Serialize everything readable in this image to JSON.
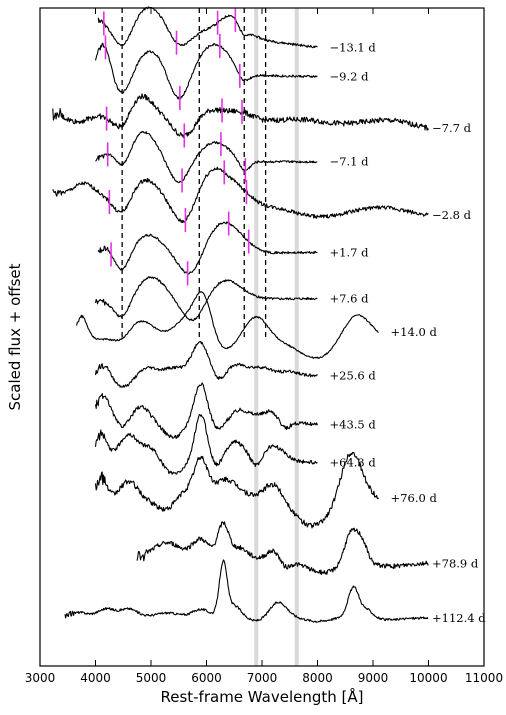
{
  "chart_data": {
    "type": "line",
    "title": "",
    "xlabel": "Rest-frame Wavelength [Å]",
    "ylabel": "Scaled flux + offset",
    "xlim": [
      3000,
      11000
    ],
    "xticks": [
      3000,
      4000,
      5000,
      6000,
      7000,
      8000,
      9000,
      10000,
      11000
    ],
    "y_ticks_shown": false,
    "grid": false,
    "reference_lines_dashed": [
      4480,
      5870,
      6680,
      7065
    ],
    "telluric_bands": [
      [
        6860,
        6900
      ],
      [
        7590,
        7650
      ]
    ],
    "line_marker_color": "#e233e2",
    "series": [
      {
        "label": "−13.1 d",
        "xmin": 4050,
        "xmax": 8000,
        "ends": [
          0.95,
          0.2
        ],
        "features": [
          [
            4480,
            -0.7,
            170
          ],
          [
            5000,
            0.5,
            280
          ],
          [
            5500,
            -0.5,
            200
          ],
          [
            6350,
            0.2,
            300
          ],
          [
            6500,
            0.4,
            200
          ],
          [
            6650,
            -0.3,
            100
          ]
        ],
        "noise": 0.03,
        "marks": [
          4150,
          5460,
          6200,
          6520
        ]
      },
      {
        "label": "−9.2 d",
        "xmin": 4000,
        "xmax": 8000,
        "ends": [
          0.4,
          0.3
        ],
        "features": [
          [
            4150,
            0.8,
            120
          ],
          [
            4480,
            -0.6,
            160
          ],
          [
            5000,
            0.6,
            260
          ],
          [
            5500,
            -0.8,
            180
          ],
          [
            6150,
            0.8,
            300
          ],
          [
            6650,
            -0.3,
            120
          ]
        ],
        "noise": 0.03,
        "marks": [
          4180,
          5520,
          6240,
          6600
        ]
      },
      {
        "label": "−7.7 d",
        "xmin": 3230,
        "xmax": 10000,
        "ends": [
          0.4,
          -0.1
        ],
        "features": [
          [
            3650,
            -0.2,
            200
          ],
          [
            4480,
            -0.5,
            160
          ],
          [
            4800,
            0.6,
            250
          ],
          [
            5600,
            -0.5,
            200
          ],
          [
            6100,
            0.3,
            300
          ],
          [
            6650,
            0.2,
            200
          ],
          [
            7700,
            0.15,
            500
          ],
          [
            9300,
            0.25,
            500
          ]
        ],
        "noise": 0.07,
        "marks": [
          4200,
          5600,
          6280,
          6640
        ]
      },
      {
        "label": "−7.1 d",
        "xmin": 4000,
        "xmax": 8000,
        "ends": [
          0.35,
          0.35
        ],
        "features": [
          [
            4300,
            0.3,
            150
          ],
          [
            4480,
            -0.5,
            150
          ],
          [
            4850,
            0.8,
            260
          ],
          [
            5500,
            -0.6,
            180
          ],
          [
            6150,
            0.5,
            280
          ],
          [
            6680,
            -0.3,
            100
          ]
        ],
        "noise": 0.03,
        "marks": [
          4220,
          5560,
          6260,
          6700
        ]
      },
      {
        "label": "−2.8 d",
        "xmin": 3230,
        "xmax": 10000,
        "ends": [
          0.5,
          -0.1
        ],
        "features": [
          [
            3800,
            0.3,
            180
          ],
          [
            4480,
            -0.5,
            160
          ],
          [
            4900,
            0.5,
            250
          ],
          [
            5600,
            -0.7,
            200
          ],
          [
            6150,
            0.9,
            300
          ],
          [
            6650,
            0.2,
            200
          ],
          [
            8000,
            -0.2,
            400
          ],
          [
            9200,
            0.15,
            400
          ]
        ],
        "noise": 0.05,
        "marks": [
          4250,
          5620,
          6320,
          6720
        ]
      },
      {
        "label": "+1.7 d",
        "xmin": 4050,
        "xmax": 8000,
        "ends": [
          0.2,
          0.25
        ],
        "features": [
          [
            4200,
            0.2,
            120
          ],
          [
            4480,
            -0.5,
            140
          ],
          [
            4950,
            0.5,
            260
          ],
          [
            5700,
            -0.6,
            200
          ],
          [
            6300,
            0.8,
            280
          ],
          [
            6700,
            0.1,
            200
          ]
        ],
        "noise": 0.03,
        "marks": [
          4280,
          5660,
          6400,
          6760
        ]
      },
      {
        "label": "+7.6 d",
        "xmin": 4000,
        "xmax": 8000,
        "ends": [
          0.2,
          0.25
        ],
        "features": [
          [
            4480,
            -0.5,
            150
          ],
          [
            5000,
            0.6,
            260
          ],
          [
            5750,
            -0.6,
            200
          ],
          [
            6350,
            0.5,
            280
          ]
        ],
        "noise": 0.03,
        "marks": []
      },
      {
        "label": "+14.0 d",
        "xmin": 3650,
        "xmax": 9100,
        "ends": [
          0.2,
          0.2
        ],
        "features": [
          [
            3750,
            0.6,
            100
          ],
          [
            4500,
            -0.2,
            150
          ],
          [
            4800,
            0.5,
            250
          ],
          [
            5700,
            0.6,
            250
          ],
          [
            5950,
            0.9,
            150
          ],
          [
            6300,
            -0.3,
            200
          ],
          [
            6900,
            0.6,
            200
          ],
          [
            8000,
            -0.5,
            350
          ],
          [
            8700,
            0.7,
            250
          ]
        ],
        "noise": 0.02,
        "marks": []
      },
      {
        "label": "+25.6 d",
        "xmin": 4000,
        "xmax": 8000,
        "ends": [
          0.25,
          0.25
        ],
        "features": [
          [
            4150,
            0.3,
            100
          ],
          [
            4500,
            -0.3,
            150
          ],
          [
            4950,
            0.2,
            150
          ],
          [
            5400,
            0.2,
            180
          ],
          [
            5900,
            0.9,
            160
          ],
          [
            6200,
            -0.3,
            150
          ],
          [
            6500,
            0.3,
            200
          ],
          [
            7000,
            0.2,
            200
          ],
          [
            7500,
            0.1,
            150
          ]
        ],
        "noise": 0.04,
        "marks": []
      },
      {
        "label": "+43.5 d",
        "xmin": 4000,
        "xmax": 8000,
        "ends": [
          0.45,
          0.2
        ],
        "features": [
          [
            4150,
            0.5,
            120
          ],
          [
            4500,
            -0.3,
            140
          ],
          [
            4800,
            0.3,
            150
          ],
          [
            5400,
            -0.5,
            200
          ],
          [
            5900,
            1.0,
            120
          ],
          [
            6200,
            -0.3,
            150
          ],
          [
            6600,
            0.3,
            200
          ],
          [
            7200,
            0.3,
            200
          ],
          [
            7400,
            -0.3,
            100
          ]
        ],
        "noise": 0.05,
        "marks": []
      },
      {
        "label": "+64.3 d",
        "xmin": 4000,
        "xmax": 8000,
        "ends": [
          0.35,
          0.2
        ],
        "features": [
          [
            4100,
            0.6,
            100
          ],
          [
            4600,
            0.6,
            160
          ],
          [
            5000,
            0.3,
            150
          ],
          [
            5400,
            -0.4,
            200
          ],
          [
            5900,
            1.2,
            110
          ],
          [
            6200,
            -0.3,
            120
          ],
          [
            6500,
            0.5,
            200
          ],
          [
            6900,
            -0.3,
            100
          ],
          [
            7200,
            0.4,
            200
          ]
        ],
        "noise": 0.05,
        "marks": []
      },
      {
        "label": "+76.0 d",
        "xmin": 4000,
        "xmax": 9100,
        "ends": [
          0.4,
          0.3
        ],
        "features": [
          [
            4100,
            0.6,
            100
          ],
          [
            4600,
            0.5,
            160
          ],
          [
            5300,
            -0.3,
            180
          ],
          [
            5600,
            0.3,
            200
          ],
          [
            5900,
            1.0,
            120
          ],
          [
            6300,
            0.5,
            200
          ],
          [
            6600,
            0.2,
            200
          ],
          [
            7200,
            0.5,
            180
          ],
          [
            7900,
            -0.6,
            300
          ],
          [
            8600,
            1.3,
            180
          ],
          [
            8900,
            0.2,
            200
          ]
        ],
        "noise": 0.07,
        "marks": []
      },
      {
        "label": "+78.9 d",
        "xmin": 4750,
        "xmax": 10000,
        "ends": [
          0.2,
          0.05
        ],
        "features": [
          [
            5300,
            0.4,
            250
          ],
          [
            5900,
            0.5,
            150
          ],
          [
            6300,
            0.9,
            100
          ],
          [
            6600,
            0.3,
            150
          ],
          [
            7250,
            0.3,
            150
          ],
          [
            7400,
            -0.3,
            100
          ],
          [
            8100,
            -0.3,
            300
          ],
          [
            8600,
            0.8,
            120
          ],
          [
            8800,
            0.5,
            100
          ],
          [
            9300,
            -0.1,
            300
          ]
        ],
        "noise": 0.06,
        "marks": []
      },
      {
        "label": "+112.4 d",
        "xmin": 3450,
        "xmax": 10000,
        "ends": [
          0.1,
          0.05
        ],
        "features": [
          [
            3700,
            0.1,
            150
          ],
          [
            4200,
            0.2,
            150
          ],
          [
            4600,
            0.2,
            150
          ],
          [
            5300,
            0.1,
            200
          ],
          [
            5900,
            0.2,
            150
          ],
          [
            6300,
            1.4,
            70
          ],
          [
            6500,
            0.3,
            120
          ],
          [
            6900,
            -0.1,
            150
          ],
          [
            7300,
            0.4,
            150
          ],
          [
            8000,
            -0.1,
            200
          ],
          [
            8650,
            0.8,
            100
          ],
          [
            8900,
            0.2,
            100
          ],
          [
            9300,
            -0.05,
            200
          ]
        ],
        "noise": 0.03,
        "marks": []
      }
    ]
  }
}
